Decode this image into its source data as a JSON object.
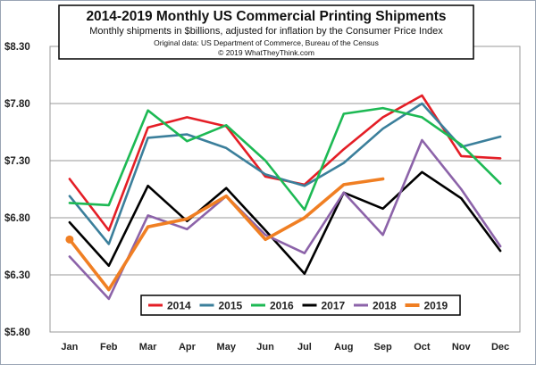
{
  "chart_data": {
    "type": "line",
    "title": "2014-2019 Monthly US Commercial Printing Shipments",
    "subtitle": "Monthly shipments in $billions, adjusted for inflation by the Consumer Price Index",
    "source": "Original data: US Department of Commerce, Bureau of the Census",
    "copyright": "© 2019 WhatTheyThink.com",
    "categories": [
      "Jan",
      "Feb",
      "Mar",
      "Apr",
      "May",
      "Jun",
      "Jul",
      "Aug",
      "Sep",
      "Oct",
      "Nov",
      "Dec"
    ],
    "y_tick_labels": [
      "$5.80",
      "$6.30",
      "$6.80",
      "$7.30",
      "$7.80",
      "$8.30"
    ],
    "ylim": [
      5.8,
      8.3
    ],
    "grid": true,
    "legend_position": "bottom-center",
    "series": [
      {
        "name": "2014",
        "color": "#e41e26",
        "values": [
          7.14,
          6.69,
          7.59,
          7.68,
          7.6,
          7.16,
          7.09,
          7.4,
          7.68,
          7.87,
          7.34,
          7.32
        ]
      },
      {
        "name": "2015",
        "color": "#3b7f9b",
        "values": [
          6.99,
          6.57,
          7.5,
          7.53,
          7.41,
          7.18,
          7.08,
          7.28,
          7.58,
          7.8,
          7.42,
          7.51
        ]
      },
      {
        "name": "2016",
        "color": "#1db954",
        "values": [
          6.93,
          6.91,
          7.74,
          7.47,
          7.61,
          7.3,
          6.87,
          7.71,
          7.76,
          7.68,
          7.44,
          7.1
        ]
      },
      {
        "name": "2017",
        "color": "#000000",
        "values": [
          6.76,
          6.38,
          7.08,
          6.77,
          7.06,
          6.69,
          6.31,
          7.02,
          6.88,
          7.2,
          6.97,
          6.51
        ]
      },
      {
        "name": "2018",
        "color": "#8c63a9",
        "values": [
          6.46,
          6.09,
          6.82,
          6.7,
          6.99,
          6.65,
          6.49,
          7.02,
          6.65,
          7.48,
          7.05,
          6.55
        ]
      },
      {
        "name": "2019",
        "color": "#f07f23",
        "values": [
          6.61,
          6.17,
          6.72,
          6.79,
          6.99,
          6.61,
          6.8,
          7.09,
          7.14,
          null,
          null,
          null
        ]
      }
    ]
  }
}
